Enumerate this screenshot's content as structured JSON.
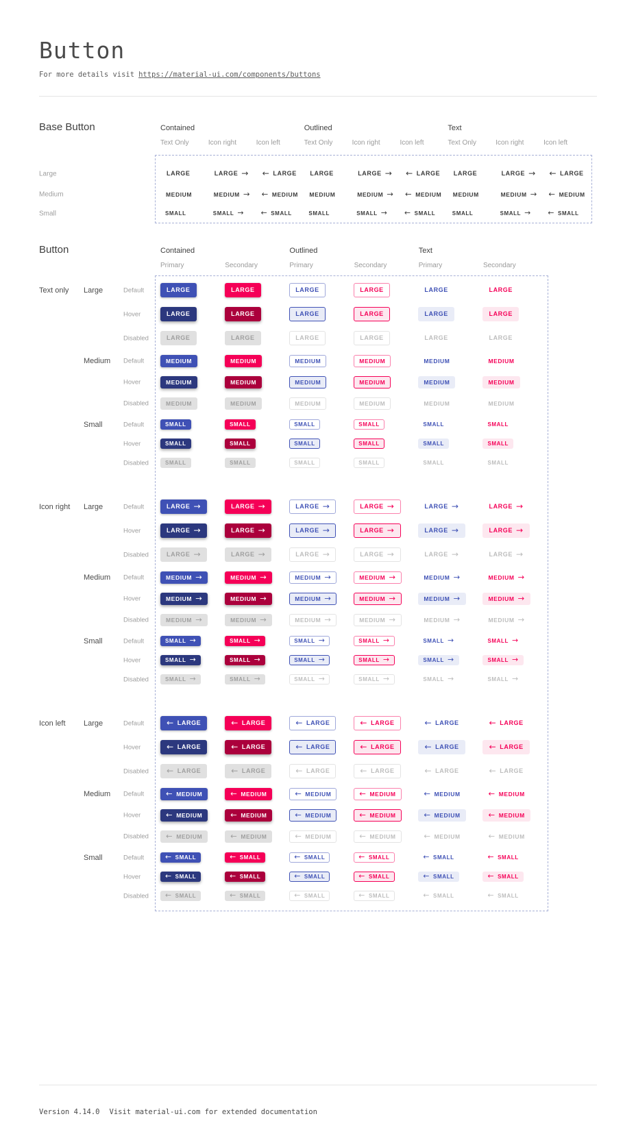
{
  "page": {
    "title": "Button",
    "subtitle_prefix": "For more details visit",
    "subtitle_link": "https://material-ui.com/components/buttons",
    "footer_version": "Version 4.14.0",
    "footer_note": "Visit material-ui.com for extended documentation"
  },
  "colors": {
    "primary": "#3f51b5",
    "primary_dark": "#2c387e",
    "secondary": "#f50057",
    "secondary_dark": "#ab003c",
    "contained_text": "#ffffff",
    "disabled_bg": "#e0e0e0",
    "disabled_text": "#9f9f9f",
    "disabled_text_light": "#bdbdbd",
    "outlined_disabled_border": "#e3e3e3",
    "outlined_primary_border": "#9fa8da",
    "outlined_secondary_border": "#fa80ac",
    "hover_bg_primary": "#e9ecf7",
    "hover_bg_secondary": "#fde7ef",
    "dashed_border": "#a7b0d6",
    "base_text": "#3b3b3b",
    "divider": "#e5e5e5"
  },
  "base_section": {
    "heading": "Base Button",
    "column_groups": [
      "Contained",
      "Outlined",
      "Text"
    ],
    "column_subs": [
      "Text Only",
      "Icon right",
      "Icon left"
    ],
    "sub_icons": [
      "none",
      "right",
      "left"
    ],
    "rows": [
      {
        "label": "Large",
        "text": "LARGE"
      },
      {
        "label": "Medium",
        "text": "MEDIUM"
      },
      {
        "label": "Small",
        "text": "SMALL"
      }
    ]
  },
  "button_section": {
    "heading": "Button",
    "column_groups": [
      {
        "label": "Contained",
        "subs": [
          "Primary",
          "Secondary"
        ]
      },
      {
        "label": "Outlined",
        "subs": [
          "Primary",
          "Secondary"
        ]
      },
      {
        "label": "Text",
        "subs": [
          "Primary",
          "Secondary"
        ]
      }
    ],
    "row_groups": [
      {
        "label": "Text only",
        "icon": "none"
      },
      {
        "label": "Icon right",
        "icon": "right"
      },
      {
        "label": "Icon left",
        "icon": "left"
      }
    ],
    "sizes": [
      {
        "label": "Large",
        "text": "LARGE"
      },
      {
        "label": "Medium",
        "text": "MEDIUM"
      },
      {
        "label": "Small",
        "text": "SMALL"
      }
    ],
    "states": [
      "Default",
      "Hover",
      "Disabled"
    ],
    "icons": {
      "right": "→",
      "left": "←"
    }
  }
}
